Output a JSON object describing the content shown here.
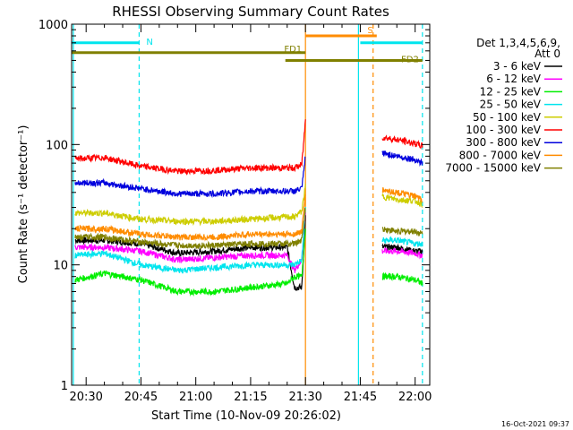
{
  "colors": {
    "background": "#ffffff",
    "axis": "#000000",
    "marker_cyan": "#00e5ee",
    "marker_orange": "#ff8c00",
    "flag_olive": "#808000",
    "red_series": "#ff0000"
  },
  "chart_data": {
    "type": "line",
    "title": "RHESSI Observing Summary Count Rates",
    "xlabel": "Start Time (10-Nov-09 20:26:02)",
    "ylabel": "Count Rate (s⁻¹ detector⁻¹)",
    "y_scale": "log",
    "ylim": [
      1,
      1000
    ],
    "xlim": [
      "20:26:02",
      "22:04:00"
    ],
    "x_ticks": [
      "20:30",
      "20:45",
      "21:00",
      "21:15",
      "21:30",
      "21:45",
      "22:00"
    ],
    "y_ticks": [
      "1",
      "10",
      "100",
      "1000"
    ],
    "grid": false,
    "legend_position": "right",
    "legend": {
      "header_line1": "Det 1,3,4,5,6,9,",
      "header_line2": "Att 0",
      "entries": [
        {
          "label": "3 - 6 keV",
          "color": "#000000"
        },
        {
          "label": "6 - 12 keV",
          "color": "#ff00ff"
        },
        {
          "label": "12 - 25 keV",
          "color": "#00ee00"
        },
        {
          "label": "25 - 50 keV",
          "color": "#00e5ee"
        },
        {
          "label": "50 - 100 keV",
          "color": "#cdcd00"
        },
        {
          "label": "100 - 300 keV",
          "color": "#ff0000"
        },
        {
          "label": "300 - 800 keV",
          "color": "#0000dd"
        },
        {
          "label": "800 - 7000 keV",
          "color": "#ff8c00"
        },
        {
          "label": "7000 - 15000 keV",
          "color": "#808000"
        }
      ]
    },
    "flag_bars": [
      {
        "label": "N",
        "color": "#00e5ee",
        "start": "20:26:02",
        "end": "20:44:30",
        "level": 700
      },
      {
        "label": "S",
        "color": "#ff8c00",
        "start": "21:30:00",
        "end": "21:49:30",
        "level": 800
      },
      {
        "label": "FD1",
        "color": "#808000",
        "start": "20:26:02",
        "end": "21:30:00",
        "level": 580
      },
      {
        "label": "FD2",
        "color": "#808000",
        "start": "21:24:30",
        "end": "22:02:00",
        "level": 500
      },
      {
        "label": "",
        "color": "#00e5ee",
        "start": "21:45:00",
        "end": "22:02:00",
        "level": 700
      }
    ],
    "vertical_markers": [
      {
        "time": "20:26:30",
        "color": "#00e5ee",
        "style": "solid"
      },
      {
        "time": "20:44:30",
        "color": "#00e5ee",
        "style": "dashed"
      },
      {
        "time": "21:30:00",
        "color": "#ff8c00",
        "style": "solid"
      },
      {
        "time": "21:44:30",
        "color": "#00e5ee",
        "style": "solid"
      },
      {
        "time": "21:48:30",
        "color": "#ff8c00",
        "style": "dashed"
      },
      {
        "time": "22:02:00",
        "color": "#00e5ee",
        "style": "dashed"
      }
    ],
    "series": [
      {
        "name": "3 - 6 keV",
        "color": "#000000",
        "x": [
          "20:27",
          "20:35",
          "20:45",
          "20:55",
          "21:05",
          "21:15",
          "21:25",
          "21:27",
          "21:29",
          "21:30"
        ],
        "y": [
          16,
          16,
          15,
          12.5,
          13,
          14,
          14,
          6.5,
          6.5,
          25
        ],
        "x2": [
          "21:51",
          "21:55",
          "22:00",
          "22:02"
        ],
        "y2": [
          14,
          14,
          13,
          13
        ]
      },
      {
        "name": "6 - 12 keV",
        "color": "#ff00ff",
        "x": [
          "20:27",
          "20:35",
          "20:45",
          "20:55",
          "21:05",
          "21:15",
          "21:25",
          "21:27",
          "21:29",
          "21:30"
        ],
        "y": [
          14,
          14,
          13,
          11,
          11.5,
          12,
          12,
          9,
          11,
          28
        ],
        "x2": [
          "21:51",
          "21:55",
          "22:00",
          "22:02"
        ],
        "y2": [
          13,
          13,
          12.5,
          12
        ]
      },
      {
        "name": "12 - 25 keV",
        "color": "#00ee00",
        "x": [
          "20:27",
          "20:35",
          "20:45",
          "20:55",
          "21:05",
          "21:15",
          "21:25",
          "21:27",
          "21:29",
          "21:30"
        ],
        "y": [
          7.5,
          8.5,
          7.5,
          6,
          6,
          6.5,
          7,
          8,
          8,
          20
        ],
        "x2": [
          "21:51",
          "21:55",
          "22:00",
          "22:02"
        ],
        "y2": [
          8,
          8,
          7.5,
          7
        ]
      },
      {
        "name": "25 - 50 keV",
        "color": "#00e5ee",
        "x": [
          "20:27",
          "20:35",
          "20:45",
          "20:55",
          "21:05",
          "21:15",
          "21:25",
          "21:27",
          "21:29",
          "21:30"
        ],
        "y": [
          12,
          12.5,
          10,
          9,
          9.5,
          10,
          10,
          10,
          11,
          30
        ],
        "x2": [
          "21:51",
          "21:55",
          "22:00",
          "22:02"
        ],
        "y2": [
          16,
          16,
          15,
          15
        ]
      },
      {
        "name": "50 - 100 keV",
        "color": "#cdcd00",
        "x": [
          "20:27",
          "20:35",
          "20:45",
          "20:55",
          "21:05",
          "21:15",
          "21:25",
          "21:27",
          "21:29",
          "21:30"
        ],
        "y": [
          27,
          27,
          24,
          23,
          23,
          24,
          25,
          25,
          28,
          45
        ],
        "x2": [
          "21:51",
          "21:55",
          "22:00",
          "22:02"
        ],
        "y2": [
          37,
          35,
          34,
          32
        ]
      },
      {
        "name": "100 - 300 keV",
        "color": "#ff0000",
        "x": [
          "20:27",
          "20:35",
          "20:45",
          "20:55",
          "21:05",
          "21:15",
          "21:25",
          "21:27",
          "21:29",
          "21:30"
        ],
        "y": [
          76,
          78,
          66,
          60,
          61,
          64,
          64,
          64,
          68,
          160
        ],
        "x2": [
          "21:51",
          "21:55",
          "22:00",
          "22:02"
        ],
        "y2": [
          115,
          110,
          102,
          97
        ]
      },
      {
        "name": "300 - 800 keV",
        "color": "#0000dd",
        "x": [
          "20:27",
          "20:35",
          "20:45",
          "20:55",
          "21:05",
          "21:15",
          "21:25",
          "21:27",
          "21:29",
          "21:30"
        ],
        "y": [
          48,
          48,
          43,
          39,
          39,
          41,
          41,
          41,
          43,
          80
        ],
        "x2": [
          "21:51",
          "21:55",
          "22:00",
          "22:02"
        ],
        "y2": [
          85,
          80,
          75,
          70
        ]
      },
      {
        "name": "800 - 7000 keV",
        "color": "#ff8c00",
        "x": [
          "20:27",
          "20:35",
          "20:45",
          "20:55",
          "21:05",
          "21:15",
          "21:25",
          "21:27",
          "21:29",
          "21:30"
        ],
        "y": [
          20,
          20,
          18,
          17,
          17,
          18,
          18,
          18,
          19,
          40
        ],
        "x2": [
          "21:51",
          "21:55",
          "22:00",
          "22:02"
        ],
        "y2": [
          42,
          40,
          37,
          35
        ]
      },
      {
        "name": "7000 - 15000 keV",
        "color": "#808000",
        "x": [
          "20:27",
          "20:35",
          "20:45",
          "20:55",
          "21:05",
          "21:15",
          "21:25",
          "21:27",
          "21:29",
          "21:30"
        ],
        "y": [
          17,
          17,
          15.5,
          14.5,
          14.5,
          15,
          15,
          15,
          16,
          30
        ],
        "x2": [
          "21:51",
          "21:55",
          "22:00",
          "22:02"
        ],
        "y2": [
          20,
          19,
          19,
          18
        ]
      }
    ]
  },
  "footer": {
    "timestamp": "16-Oct-2021 09:37"
  }
}
